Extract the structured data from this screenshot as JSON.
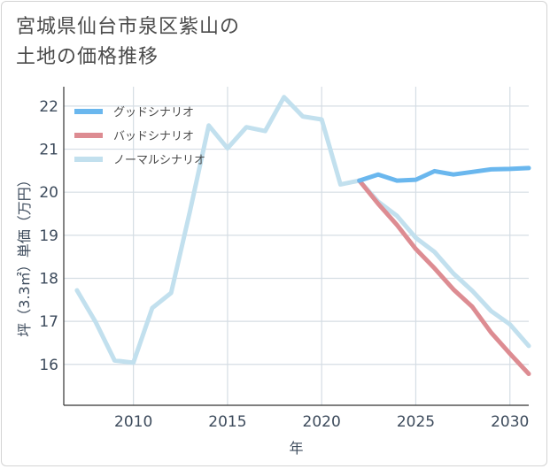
{
  "title_lines": [
    "宮城県仙台市泉区紫山の",
    "土地の価格推移"
  ],
  "chart_data": {
    "type": "line",
    "title": "宮城県仙台市泉区紫山の土地の価格推移",
    "xlabel": "年",
    "ylabel": "坪（3.3㎡）単価（万円）",
    "xlim": [
      2006.3,
      2031
    ],
    "ylim": [
      15.05,
      22.45
    ],
    "xticks": [
      2010,
      2015,
      2020,
      2025,
      2030
    ],
    "yticks": [
      16,
      17,
      18,
      19,
      20,
      21,
      22
    ],
    "legend_position": "top-left",
    "series": [
      {
        "name": "グッドシナリオ",
        "color": "#6ab7ee",
        "x": [
          2022,
          2023,
          2024,
          2025,
          2026,
          2027,
          2028,
          2029,
          2030,
          2031
        ],
        "values": [
          20.27,
          20.41,
          20.27,
          20.29,
          20.49,
          20.41,
          20.47,
          20.53,
          20.54,
          20.56
        ]
      },
      {
        "name": "バッドシナリオ",
        "color": "#dd8c92",
        "x": [
          2022,
          2023,
          2024,
          2025,
          2026,
          2027,
          2028,
          2029,
          2030,
          2031
        ],
        "values": [
          20.27,
          19.73,
          19.24,
          18.68,
          18.23,
          17.74,
          17.34,
          16.74,
          16.25,
          15.78
        ]
      },
      {
        "name": "ノーマルシナリオ",
        "color": "#c2e0ee",
        "x": [
          2007,
          2008,
          2009,
          2010,
          2011,
          2012,
          2013,
          2014,
          2015,
          2016,
          2017,
          2018,
          2019,
          2020,
          2021,
          2022,
          2023,
          2024,
          2025,
          2026,
          2027,
          2028,
          2029,
          2030,
          2031
        ],
        "values": [
          17.72,
          16.98,
          16.09,
          16.04,
          17.31,
          17.66,
          19.55,
          21.55,
          21.02,
          21.51,
          21.42,
          22.21,
          21.76,
          21.69,
          20.18,
          20.27,
          19.78,
          19.45,
          18.94,
          18.61,
          18.11,
          17.71,
          17.24,
          16.93,
          16.43
        ]
      }
    ]
  }
}
